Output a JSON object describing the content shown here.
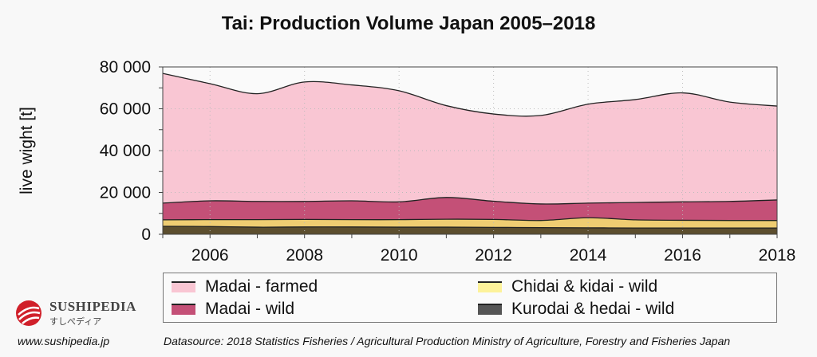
{
  "chart_data": {
    "type": "area",
    "stacked": true,
    "title": "Tai: Production Volume Japan 2005–2018",
    "xlabel": "",
    "ylabel": "live wight [t]",
    "x": [
      2005,
      2006,
      2007,
      2008,
      2009,
      2010,
      2011,
      2012,
      2013,
      2014,
      2015,
      2016,
      2017,
      2018
    ],
    "xticks": [
      "2006",
      "2008",
      "2010",
      "2012",
      "2014",
      "2016",
      "2018"
    ],
    "yticks": [
      "0",
      "20 000",
      "40 000",
      "60 000",
      "80 000"
    ],
    "xlim": [
      2005,
      2018
    ],
    "ylim": [
      0,
      80000
    ],
    "grid": true,
    "legend_position": "bottom",
    "series": [
      {
        "name": "Kurodai & hedai - wild",
        "color": "#5c4e2e",
        "legend_color": "#555555",
        "values": [
          3800,
          3700,
          3400,
          3500,
          3500,
          3400,
          3400,
          3300,
          3200,
          3100,
          3000,
          3000,
          3000,
          3000
        ]
      },
      {
        "name": "Chidai & kidai - wild",
        "color": "#efcd72",
        "legend_color": "#fdf29a",
        "values": [
          3100,
          3300,
          3600,
          3600,
          3500,
          3600,
          3800,
          3800,
          3400,
          4800,
          3900,
          3700,
          3600,
          3600
        ]
      },
      {
        "name": "Madai - wild",
        "color": "#c45077",
        "legend_color": "#c45077",
        "values": [
          8000,
          9000,
          8700,
          8600,
          9000,
          8500,
          10400,
          8700,
          7900,
          7000,
          8300,
          8800,
          9100,
          9800
        ]
      },
      {
        "name": "Madai - farmed",
        "color": "#f9c6d3",
        "legend_color": "#f9c6d3",
        "values": [
          62000,
          56000,
          51500,
          57100,
          55400,
          53100,
          43900,
          41700,
          42300,
          47300,
          49200,
          52100,
          47500,
          44900
        ]
      }
    ]
  },
  "legend_order": [
    3,
    2,
    1,
    0
  ],
  "logo": {
    "brand": "SUSHIPEDIA",
    "sub": "すしぺディア"
  },
  "footer": {
    "url": "www.sushipedia.jp",
    "source": "Datasource: 2018 Statistics Fisheries / Agricultural Production Ministry of Agriculture, Forestry and Fisheries Japan"
  }
}
